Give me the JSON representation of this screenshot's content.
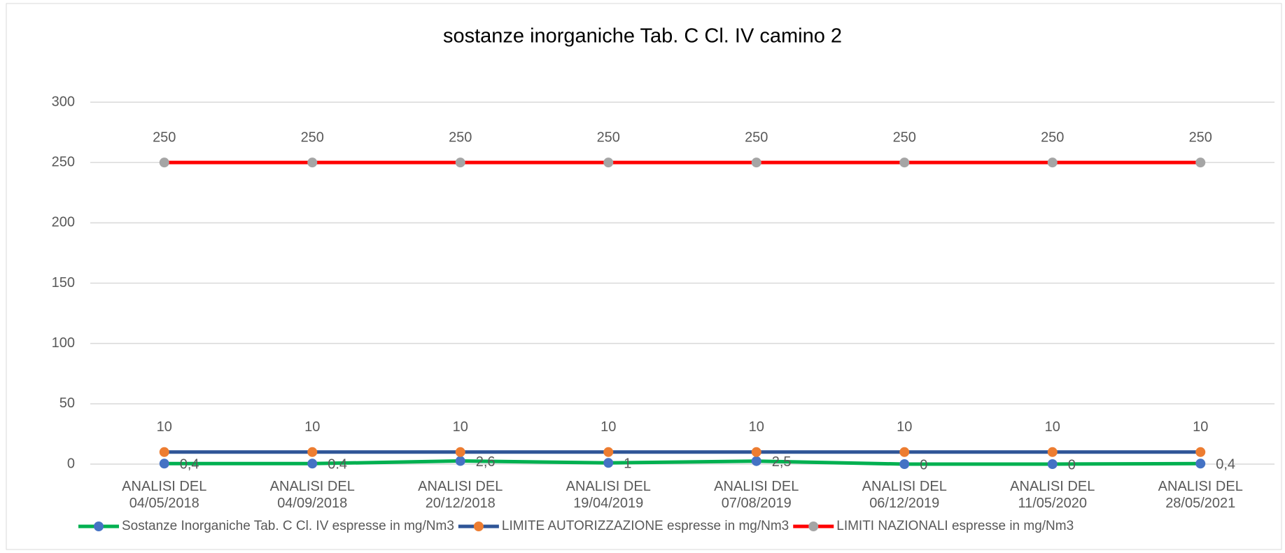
{
  "chart_data": {
    "type": "line",
    "title": "sostanze inorganiche  Tab. C Cl. IV  camino 2",
    "categories": [
      "ANALISI DEL 04/05/2018",
      "ANALISI DEL 04/09/2018",
      "ANALISI DEL 20/12/2018",
      "ANALISI DEL 19/04/2019",
      "ANALISI DEL 07/08/2019",
      "ANALISI DEL 06/12/2019",
      "ANALISI DEL 11/05/2020",
      "ANALISI DEL 28/05/2021"
    ],
    "series": [
      {
        "name": "Sostanze Inorganiche Tab. C Cl. IV espresse in mg/Nm3",
        "color": "#00b050",
        "marker_color": "#4472c4",
        "values": [
          0.4,
          0.4,
          2.6,
          1,
          2.5,
          0,
          0,
          0.4
        ],
        "value_labels": [
          "0,4",
          "0.4",
          "2,6",
          "1",
          "2,5",
          "0",
          "0",
          "0,4"
        ]
      },
      {
        "name": "LIMITE AUTORIZZAZIONE espresse in mg/Nm3",
        "color": "#2f5597",
        "marker_color": "#ed7d31",
        "values": [
          10,
          10,
          10,
          10,
          10,
          10,
          10,
          10
        ]
      },
      {
        "name": "LIMITI NAZIONALI espresse in mg/Nm3",
        "color": "#ff0000",
        "marker_color": "#a5a5a5",
        "values": [
          250,
          250,
          250,
          250,
          250,
          250,
          250,
          250
        ]
      }
    ],
    "ylim": [
      0,
      300
    ],
    "yticks": [
      0,
      50,
      100,
      150,
      200,
      250,
      300
    ],
    "grid": true
  }
}
